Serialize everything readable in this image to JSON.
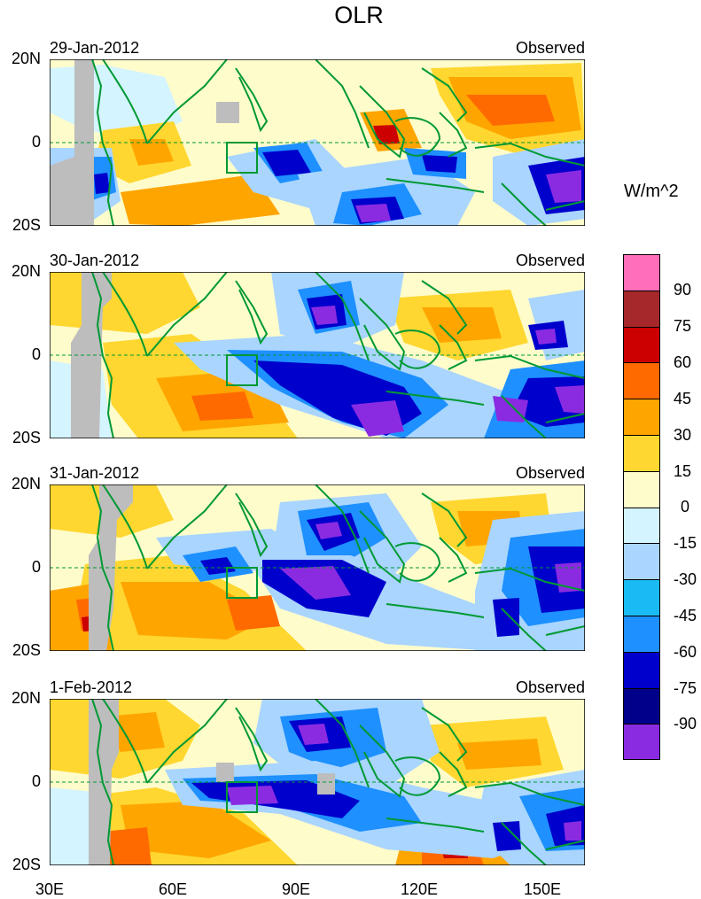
{
  "title": "OLR",
  "units": "W/m^2",
  "panels": [
    {
      "date": "29-Jan-2012",
      "label": "Observed",
      "ylabel_top": "20N",
      "ylabel_mid": "0",
      "ylabel_bottom": "20S"
    },
    {
      "date": "30-Jan-2012",
      "label": "Observed",
      "ylabel_top": "20N",
      "ylabel_mid": "0",
      "ylabel_bottom": "20S"
    },
    {
      "date": "31-Jan-2012",
      "label": "Observed",
      "ylabel_top": "20N",
      "ylabel_mid": "0",
      "ylabel_bottom": "20S"
    },
    {
      "date": "1-Feb-2012",
      "label": "Observed",
      "ylabel_top": "20N",
      "ylabel_mid": "0",
      "ylabel_bottom": "20S"
    }
  ],
  "xaxis": [
    "30E",
    "60E",
    "90E",
    "120E",
    "150E"
  ],
  "colorbar": {
    "labels": [
      "90",
      "75",
      "60",
      "45",
      "30",
      "15",
      "0",
      "-15",
      "-30",
      "-45",
      "-60",
      "-75",
      "-90"
    ],
    "colors": [
      "#ff6eb8",
      "#a6282a",
      "#cc0000",
      "#ff6a00",
      "#ffa500",
      "#ffd730",
      "#fffccb",
      "#d4f4ff",
      "#a9d5ff",
      "#19bbf5",
      "#1e90ff",
      "#0000cc",
      "#00008b",
      "#8a2be2"
    ]
  },
  "land_color": "#009933",
  "missing_color": "#bdbdbd"
}
